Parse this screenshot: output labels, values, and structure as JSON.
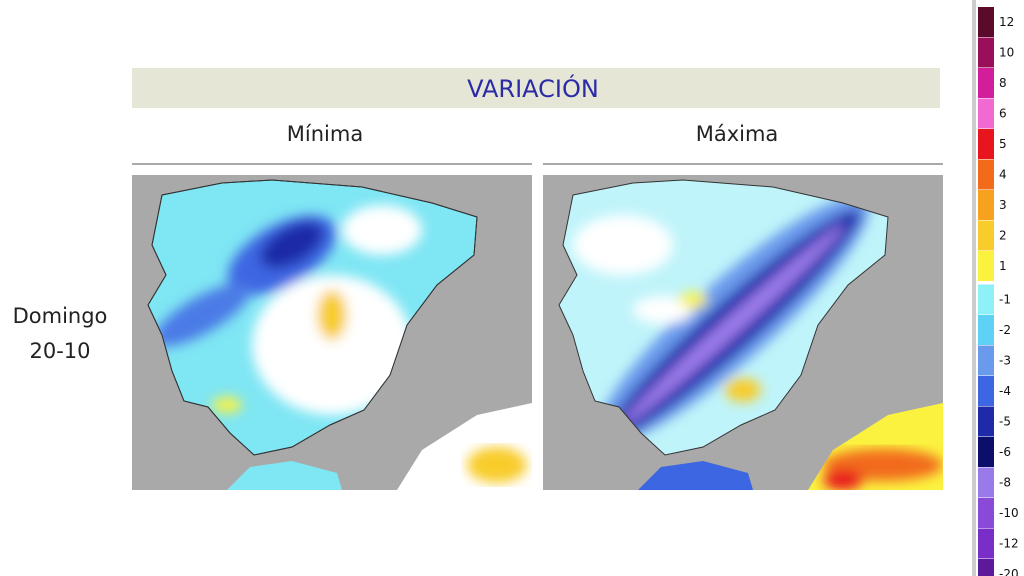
{
  "header": {
    "title": "VARIACIÓN"
  },
  "panels": [
    {
      "label": "Mínima"
    },
    {
      "label": "Máxima"
    }
  ],
  "row_label": [
    "Domingo",
    "20-10"
  ],
  "legend": {
    "items": [
      {
        "label": "12",
        "color": "#5a0a2a"
      },
      {
        "label": "10",
        "color": "#9a0f5a"
      },
      {
        "label": "8",
        "color": "#d21e9a"
      },
      {
        "label": "6",
        "color": "#f06ad2"
      },
      {
        "label": "5",
        "color": "#e8141e"
      },
      {
        "label": "4",
        "color": "#f26a1a"
      },
      {
        "label": "3",
        "color": "#f6a21e"
      },
      {
        "label": "2",
        "color": "#f8cc2a"
      },
      {
        "label": "1",
        "color": "#fbf240"
      },
      {
        "label": "-1",
        "color": "#8ef0f8"
      },
      {
        "label": "-2",
        "color": "#5ed2f4"
      },
      {
        "label": "-3",
        "color": "#6a9aec"
      },
      {
        "label": "-4",
        "color": "#3c66e2"
      },
      {
        "label": "-5",
        "color": "#1e2aa8"
      },
      {
        "label": "-6",
        "color": "#0c0f6a"
      },
      {
        "label": "-8",
        "color": "#9a7ae8"
      },
      {
        "label": "-10",
        "color": "#8a4ad8"
      },
      {
        "label": "-12",
        "color": "#7a2ec8"
      },
      {
        "label": "-20",
        "color": "#5c1a9a"
      }
    ]
  }
}
